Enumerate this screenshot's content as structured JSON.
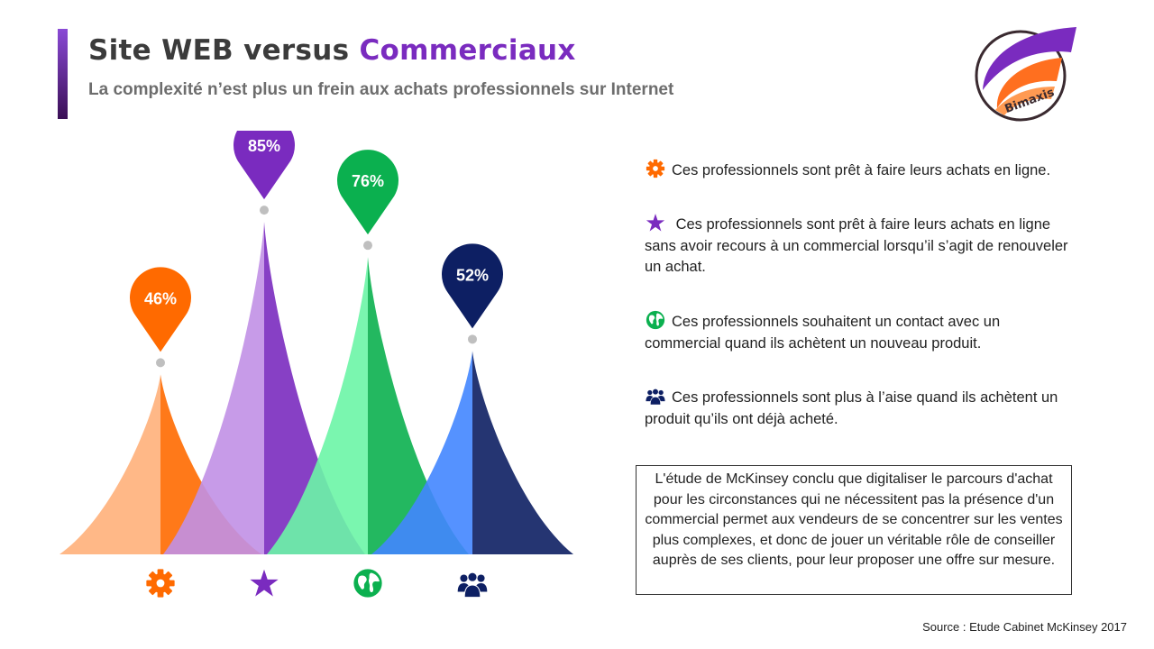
{
  "header": {
    "title_prefix": "Site WEB versus",
    "title_accent": "Commerciaux",
    "subtitle": "La complexité n’est plus un frein aux achats professionnels sur Internet",
    "logo_text": "Bimaxis",
    "logo_colors": {
      "purple": "#7a2bbf",
      "orange": "#ff6f1f",
      "ring": "#3a2a30"
    }
  },
  "chart_data": {
    "type": "area",
    "series": [
      {
        "value": 46,
        "label": "46%",
        "icon": "gear-icon",
        "color_light": "#ffb07a",
        "color_dark": "#ff6a00",
        "pin_color": "#ff6a00"
      },
      {
        "value": 85,
        "label": "85%",
        "icon": "star-icon",
        "color_light": "#c190e5",
        "color_dark": "#7a2bbf",
        "pin_color": "#7a2bbf"
      },
      {
        "value": 76,
        "label": "76%",
        "icon": "globe-icon",
        "color_light": "#6cf5a6",
        "color_dark": "#0bb04f",
        "pin_color": "#0bb04f"
      },
      {
        "value": 52,
        "label": "52%",
        "icon": "people-icon",
        "color_light": "#4286ff",
        "color_dark": "#0d1f63",
        "pin_color": "#0d1f63"
      }
    ],
    "ylim": [
      0,
      100
    ],
    "pin_stem_color": "#bfbfbf"
  },
  "legend": [
    {
      "icon": "gear-icon",
      "color": "#ff6a00",
      "text": "Ces professionnels sont prêt à faire leurs achats en ligne."
    },
    {
      "icon": "star-icon",
      "color": "#7a2bbf",
      "text": " Ces professionnels sont prêt à faire leurs achats en ligne sans avoir recours à un commercial lorsqu’il s’agit de renouveler un achat."
    },
    {
      "icon": "globe-icon",
      "color": "#0bb04f",
      "text": "Ces professionnels souhaitent un contact avec un commercial quand ils achètent un nouveau produit."
    },
    {
      "icon": "people-icon",
      "color": "#0d1f63",
      "text": "Ces professionnels sont plus à l’aise quand ils achètent  un produit qu’ils ont déjà acheté."
    }
  ],
  "note": "L'étude de McKinsey conclu que digitaliser le parcours d'achat pour les circonstances qui ne nécessitent pas la présence d'un commercial permet aux vendeurs de se concentrer sur les ventes plus complexes, et donc de jouer un véritable rôle de conseiller auprès de ses clients, pour leur proposer une offre sur mesure.",
  "source": "Source : Etude Cabinet McKinsey 2017"
}
